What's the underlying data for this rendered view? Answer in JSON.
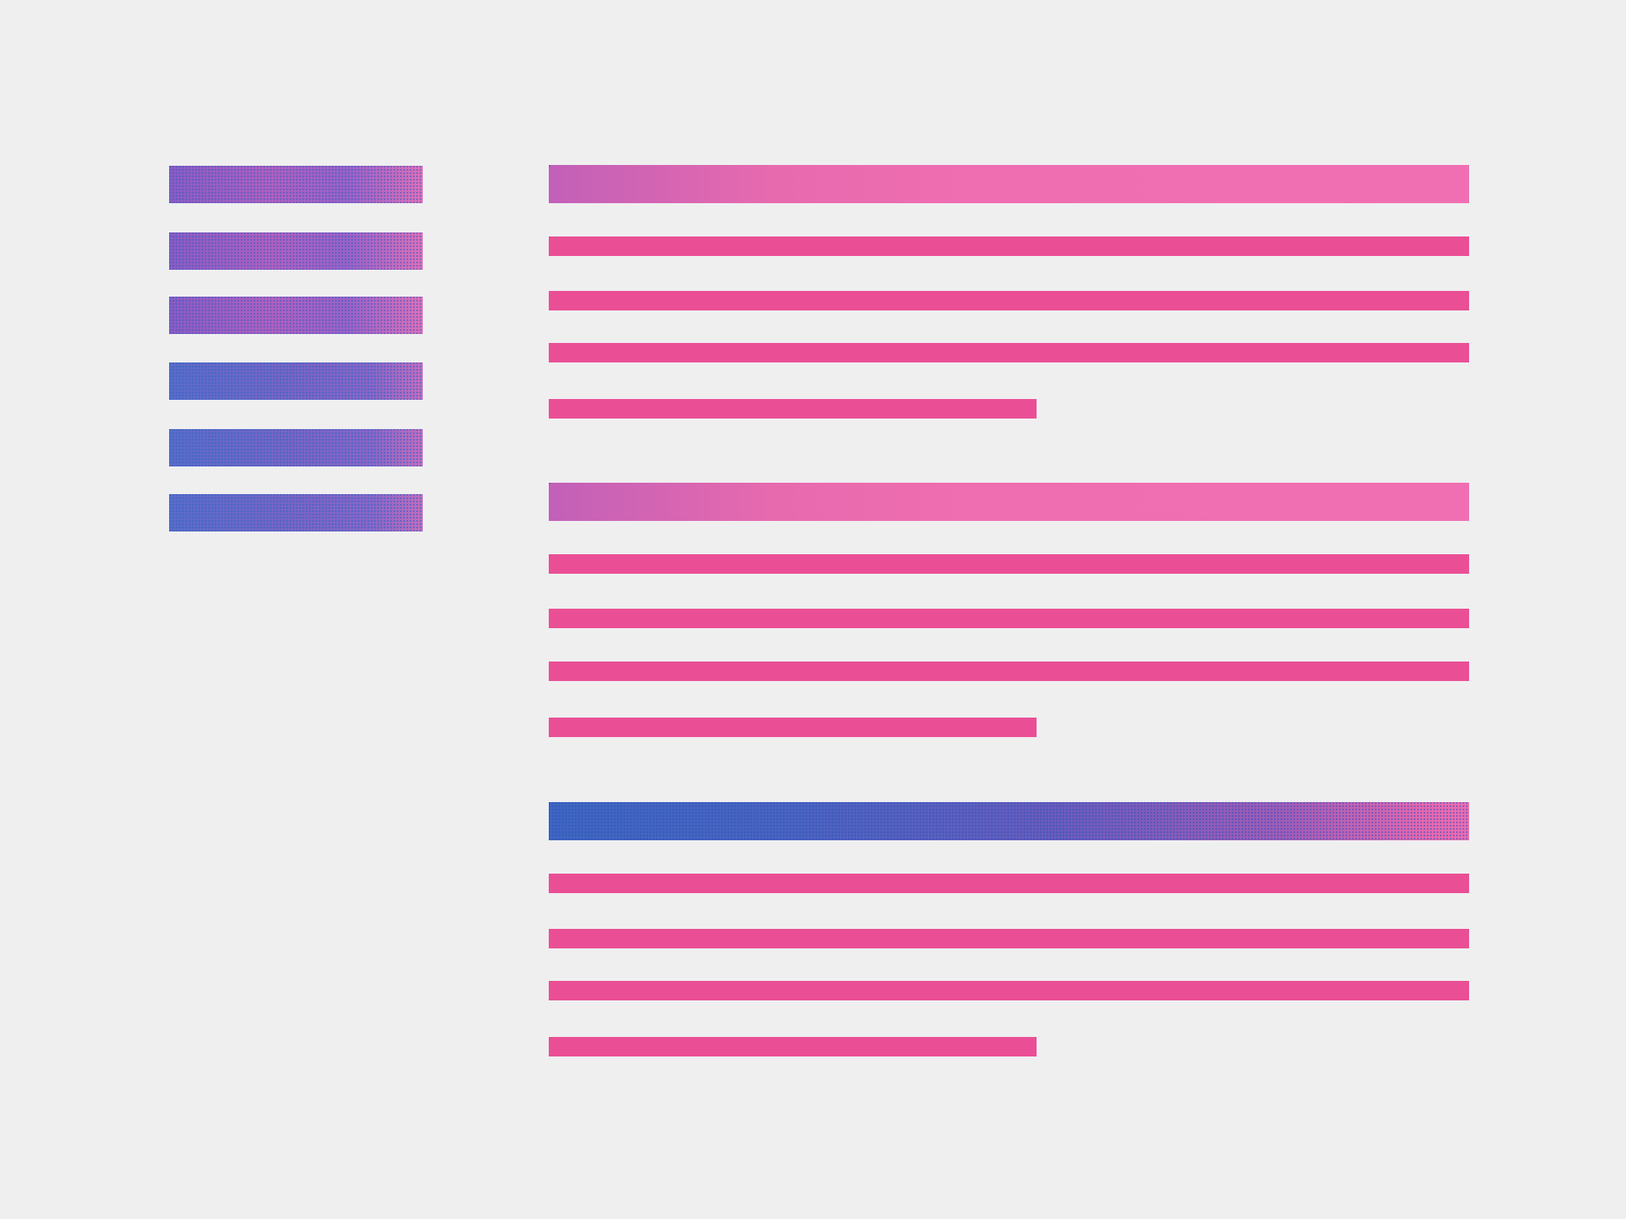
{
  "colors": {
    "background": "#efeff0",
    "line_pink": "#ea4f95",
    "header_pink": "#f06fb2",
    "accent_blue": "#3f66c0",
    "sidebar_purple": "#8a5cc4"
  },
  "sidebar": {
    "items": 6
  },
  "sections": [
    {
      "header_style": "pink-gradient",
      "lines": 4
    },
    {
      "header_style": "pink-gradient",
      "lines": 4
    },
    {
      "header_style": "blue-gradient",
      "lines": 4
    }
  ]
}
